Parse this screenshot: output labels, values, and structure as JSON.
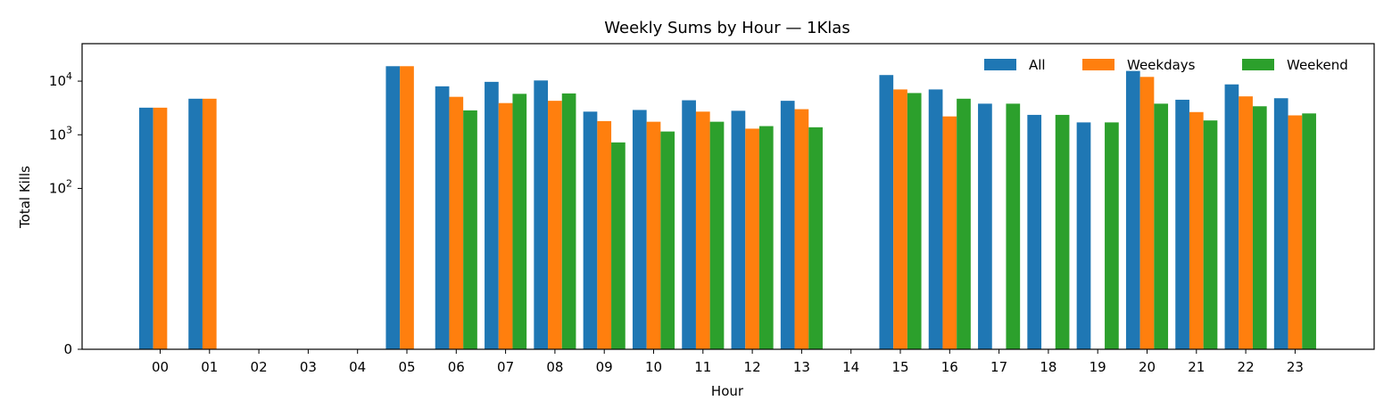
{
  "chart_data": {
    "type": "bar",
    "title": "Weekly Sums by Hour — 1Klas",
    "xlabel": "Hour",
    "ylabel": "Total Kills",
    "yscale": "symlog",
    "ylim": [
      0,
      50000
    ],
    "y_tick_labels": [
      {
        "value": 0,
        "base": "0",
        "exp": ""
      },
      {
        "value": 100,
        "base": "10",
        "exp": "2"
      },
      {
        "value": 1000,
        "base": "10",
        "exp": "3"
      },
      {
        "value": 10000,
        "base": "10",
        "exp": "4"
      }
    ],
    "categories": [
      "00",
      "01",
      "02",
      "03",
      "04",
      "05",
      "06",
      "07",
      "08",
      "09",
      "10",
      "11",
      "12",
      "13",
      "14",
      "15",
      "16",
      "17",
      "18",
      "19",
      "20",
      "21",
      "22",
      "23"
    ],
    "legend_position": "top-right",
    "grid": false,
    "series": [
      {
        "name": "All",
        "color": "#1f77b4",
        "values": [
          3200,
          4700,
          0,
          0,
          0,
          19000,
          8000,
          9700,
          10300,
          2700,
          2900,
          4400,
          2800,
          4300,
          0,
          13000,
          7000,
          3800,
          2350,
          1700,
          15500,
          4500,
          8700,
          4800
        ]
      },
      {
        "name": "Weekdays",
        "color": "#ff7f0e",
        "values": [
          3200,
          4700,
          0,
          0,
          0,
          19000,
          5100,
          3900,
          4300,
          1800,
          1750,
          2700,
          1300,
          3000,
          0,
          7000,
          2200,
          0,
          0,
          0,
          12000,
          2650,
          5200,
          2300
        ]
      },
      {
        "name": "Weekend",
        "color": "#2ca02c",
        "values": [
          0,
          0,
          0,
          0,
          0,
          0,
          2850,
          5800,
          5900,
          720,
          1150,
          1750,
          1450,
          1380,
          0,
          6000,
          4700,
          3800,
          2350,
          1700,
          3800,
          1850,
          3400,
          2500
        ]
      }
    ]
  }
}
